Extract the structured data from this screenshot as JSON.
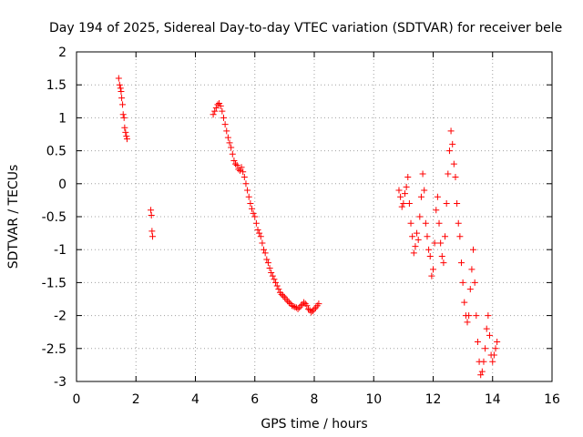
{
  "chart_data": {
    "type": "scatter",
    "title": "Day 194 of 2025, Sidereal Day-to-day VTEC variation (SDTVAR) for receiver bele",
    "xlabel": "GPS time / hours",
    "ylabel": "SDTVAR / TECUs",
    "xlim": [
      0,
      16
    ],
    "ylim": [
      -3,
      2
    ],
    "xticks": [
      0,
      2,
      4,
      6,
      8,
      10,
      12,
      14,
      16
    ],
    "yticks": [
      -3,
      -2.5,
      -2,
      -1.5,
      -1,
      -0.5,
      0,
      0.5,
      1,
      1.5,
      2
    ],
    "grid": true,
    "marker": "+",
    "series_color": "#ff0000",
    "series": [
      {
        "name": "SDTVAR",
        "x": [
          1.42,
          1.45,
          1.48,
          1.5,
          1.52,
          1.55,
          1.57,
          1.6,
          1.62,
          1.65,
          1.68,
          1.7,
          2.5,
          2.52,
          2.54,
          2.56,
          4.6,
          4.65,
          4.7,
          4.75,
          4.8,
          4.85,
          4.9,
          4.95,
          5.0,
          5.05,
          5.1,
          5.15,
          5.2,
          5.25,
          5.3,
          5.35,
          5.4,
          5.45,
          5.5,
          5.55,
          5.6,
          5.65,
          5.7,
          5.75,
          5.8,
          5.85,
          5.9,
          5.95,
          6.0,
          6.05,
          6.1,
          6.15,
          6.2,
          6.25,
          6.3,
          6.35,
          6.4,
          6.45,
          6.5,
          6.55,
          6.6,
          6.65,
          6.7,
          6.75,
          6.8,
          6.85,
          6.9,
          6.95,
          7.0,
          7.05,
          7.1,
          7.15,
          7.2,
          7.25,
          7.3,
          7.35,
          7.4,
          7.45,
          7.5,
          7.55,
          7.6,
          7.65,
          7.7,
          7.75,
          7.8,
          7.85,
          7.9,
          7.95,
          8.0,
          8.05,
          8.1,
          8.15,
          10.85,
          10.9,
          10.95,
          11.0,
          11.05,
          11.1,
          11.15,
          11.2,
          11.25,
          11.3,
          11.35,
          11.4,
          11.45,
          11.5,
          11.55,
          11.6,
          11.65,
          11.7,
          11.75,
          11.8,
          11.85,
          11.9,
          11.95,
          12.0,
          12.05,
          12.1,
          12.15,
          12.2,
          12.25,
          12.3,
          12.35,
          12.4,
          12.45,
          12.5,
          12.55,
          12.6,
          12.65,
          12.7,
          12.75,
          12.8,
          12.85,
          12.9,
          12.95,
          13.0,
          13.05,
          13.1,
          13.15,
          13.2,
          13.25,
          13.3,
          13.35,
          13.4,
          13.45,
          13.5,
          13.55,
          13.6,
          13.65,
          13.7,
          13.75,
          13.8,
          13.85,
          13.9,
          13.95,
          14.0,
          14.05,
          14.1,
          14.15
        ],
        "y": [
          1.6,
          1.5,
          1.45,
          1.4,
          1.3,
          1.2,
          1.05,
          1.0,
          0.85,
          0.78,
          0.72,
          0.68,
          -0.4,
          -0.48,
          -0.72,
          -0.8,
          1.05,
          1.1,
          1.15,
          1.2,
          1.22,
          1.18,
          1.1,
          1.0,
          0.9,
          0.8,
          0.7,
          0.62,
          0.55,
          0.45,
          0.35,
          0.3,
          0.28,
          0.22,
          0.2,
          0.25,
          0.18,
          0.1,
          0.0,
          -0.1,
          -0.2,
          -0.3,
          -0.38,
          -0.45,
          -0.5,
          -0.6,
          -0.7,
          -0.75,
          -0.8,
          -0.9,
          -1.0,
          -1.05,
          -1.15,
          -1.2,
          -1.28,
          -1.35,
          -1.4,
          -1.45,
          -1.5,
          -1.55,
          -1.6,
          -1.65,
          -1.68,
          -1.7,
          -1.72,
          -1.75,
          -1.78,
          -1.8,
          -1.82,
          -1.85,
          -1.86,
          -1.87,
          -1.88,
          -1.9,
          -1.88,
          -1.85,
          -1.83,
          -1.8,
          -1.82,
          -1.85,
          -1.9,
          -1.92,
          -1.95,
          -1.93,
          -1.9,
          -1.88,
          -1.85,
          -1.82,
          -0.1,
          -0.2,
          -0.35,
          -0.3,
          -0.15,
          -0.05,
          0.1,
          -0.3,
          -0.6,
          -0.8,
          -1.05,
          -0.95,
          -0.75,
          -0.85,
          -0.5,
          -0.2,
          0.15,
          -0.1,
          -0.6,
          -0.8,
          -1.0,
          -1.1,
          -1.4,
          -1.3,
          -0.9,
          -0.4,
          -0.2,
          -0.6,
          -0.9,
          -1.1,
          -1.2,
          -0.8,
          -0.3,
          0.15,
          0.5,
          0.8,
          0.6,
          0.3,
          0.1,
          -0.3,
          -0.6,
          -0.8,
          -1.2,
          -1.5,
          -1.8,
          -2.0,
          -2.1,
          -2.0,
          -1.6,
          -1.3,
          -1.0,
          -1.5,
          -2.0,
          -2.4,
          -2.7,
          -2.9,
          -2.85,
          -2.7,
          -2.5,
          -2.2,
          -2.0,
          -2.3,
          -2.6,
          -2.7,
          -2.6,
          -2.5,
          -2.4
        ]
      }
    ]
  }
}
